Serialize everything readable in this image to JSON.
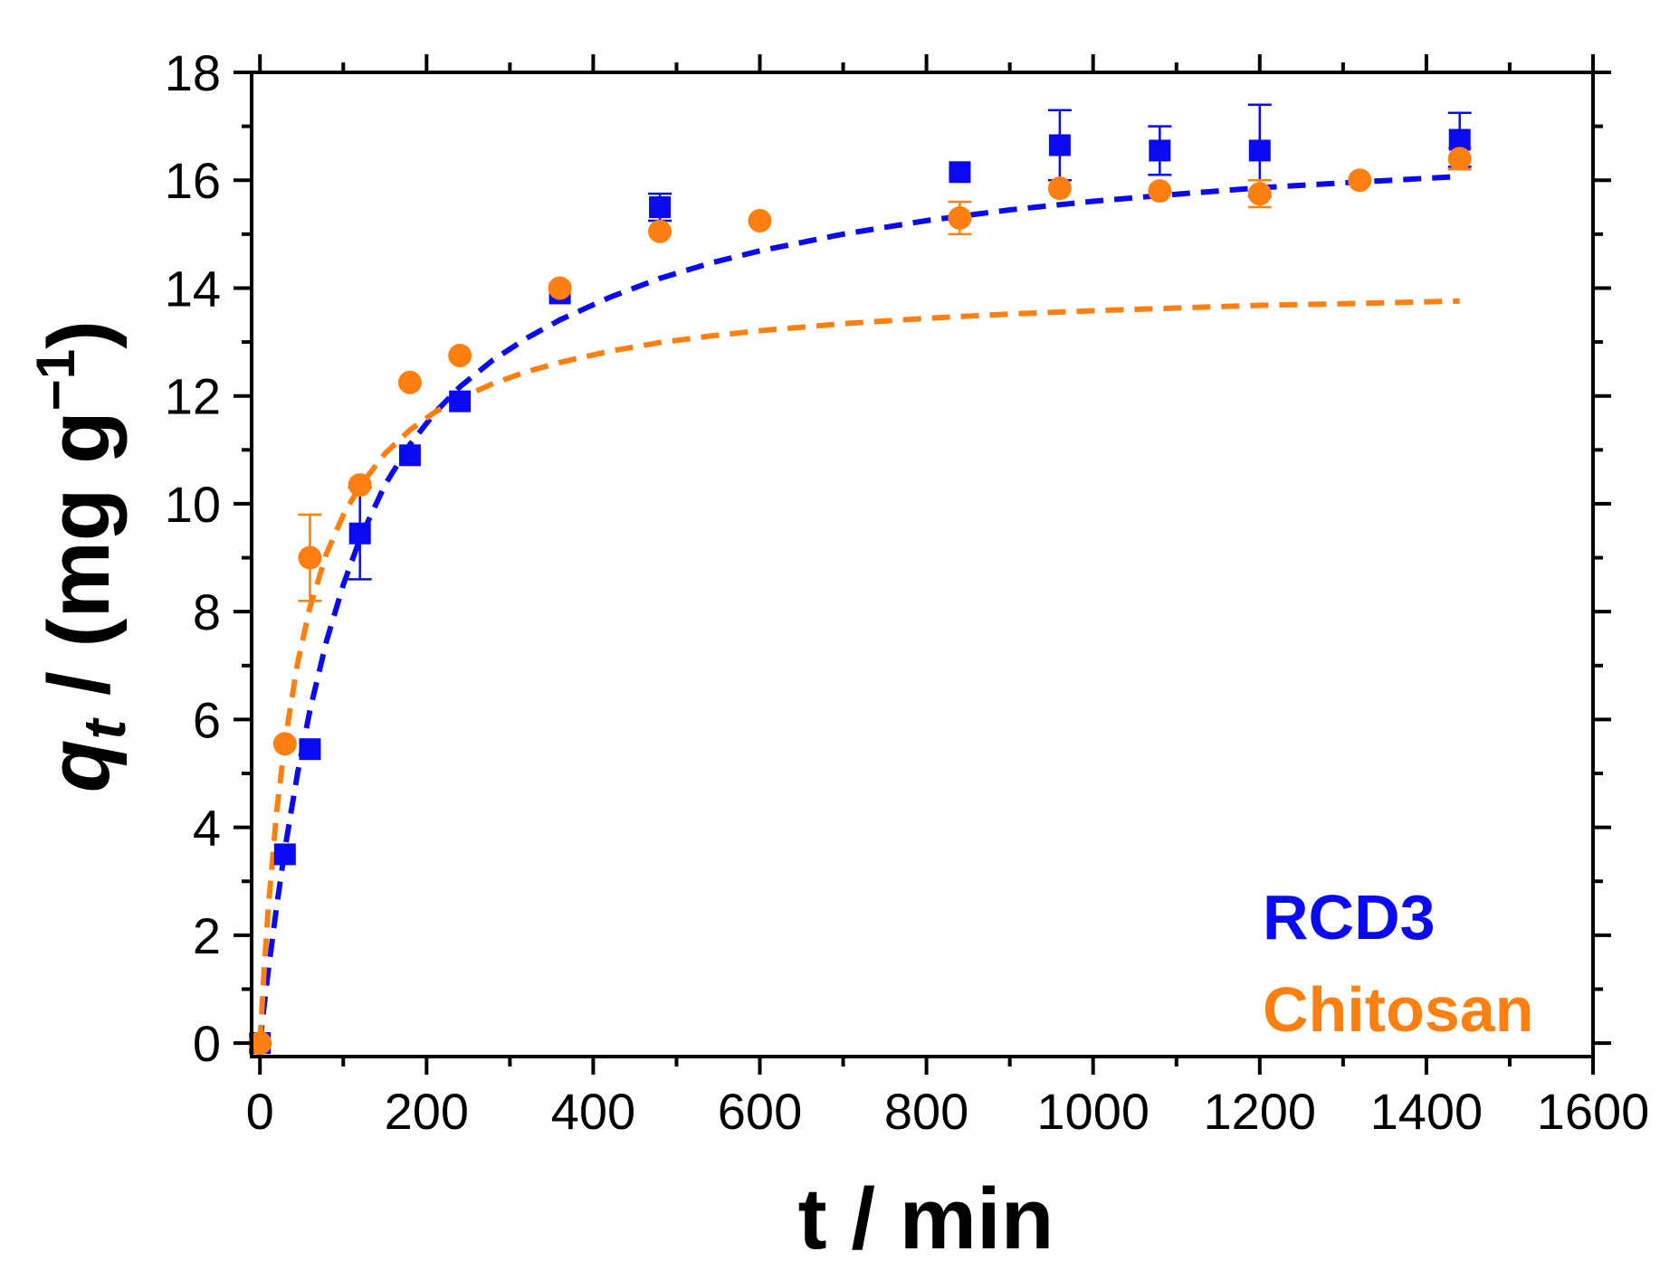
{
  "chart_data": {
    "type": "scatter",
    "xlabel": "t / min",
    "ylabel": {
      "symbol": "q",
      "subscript": "t",
      "units": " / (mg g",
      "exponent": "−1",
      "close": ")"
    },
    "xlim": [
      -10,
      1600
    ],
    "ylim": [
      -0.25,
      18
    ],
    "xticks": [
      0,
      200,
      400,
      600,
      800,
      1000,
      1200,
      1400,
      1600
    ],
    "xtick_labels": [
      "0",
      "200",
      "400",
      "600",
      "800",
      "1000",
      "1200",
      "1400",
      "1600"
    ],
    "yticks": [
      0,
      2,
      4,
      6,
      8,
      10,
      12,
      14,
      16,
      18
    ],
    "ytick_labels": [
      "0",
      "2",
      "4",
      "6",
      "8",
      "10",
      "12",
      "14",
      "16",
      "18"
    ],
    "x_minor_step": 100,
    "y_minor_step": 1,
    "grid": false,
    "legend_position": "bottom-right",
    "series": [
      {
        "name": "RCD3",
        "color": "#0a0af0",
        "marker": "square",
        "x": [
          0,
          30,
          60,
          120,
          180,
          240,
          360,
          480,
          840,
          960,
          1080,
          1200,
          1440
        ],
        "y": [
          0,
          3.5,
          5.45,
          9.45,
          10.9,
          11.9,
          13.9,
          15.5,
          16.15,
          16.65,
          16.55,
          16.55,
          16.75
        ],
        "err": [
          0,
          0,
          0,
          0.85,
          0,
          0,
          0,
          0.25,
          0,
          0.65,
          0.45,
          0.85,
          0.5
        ],
        "fit": {
          "x": [
            0,
            5,
            10,
            20,
            30,
            45,
            60,
            80,
            100,
            120,
            150,
            180,
            210,
            240,
            280,
            320,
            360,
            420,
            480,
            540,
            600,
            700,
            800,
            900,
            1000,
            1100,
            1200,
            1300,
            1440
          ],
          "y": [
            0,
            0.69,
            1.34,
            2.53,
            3.6,
            4.99,
            6.17,
            7.46,
            8.5,
            9.35,
            10.35,
            11.1,
            11.69,
            12.17,
            12.67,
            13.07,
            13.41,
            13.83,
            14.18,
            14.46,
            14.69,
            15.0,
            15.25,
            15.45,
            15.61,
            15.74,
            15.86,
            15.95,
            16.07
          ]
        }
      },
      {
        "name": "Chitosan",
        "color": "#ff8010",
        "marker": "circle",
        "x": [
          0,
          30,
          60,
          120,
          180,
          240,
          360,
          480,
          600,
          840,
          960,
          1080,
          1200,
          1320,
          1440
        ],
        "y": [
          0,
          5.55,
          9.0,
          10.35,
          12.25,
          12.75,
          14.0,
          15.05,
          15.25,
          15.3,
          15.85,
          15.8,
          15.75,
          16.0,
          16.4
        ],
        "err": [
          0,
          0,
          0.8,
          0,
          0,
          0,
          0,
          0,
          0,
          0.3,
          0,
          0,
          0.25,
          0,
          0.2
        ],
        "fit": {
          "x": [
            0,
            5,
            10,
            20,
            30,
            45,
            60,
            80,
            100,
            120,
            150,
            180,
            210,
            240,
            280,
            320,
            360,
            420,
            480,
            540,
            600,
            700,
            800,
            900,
            1000,
            1100,
            1200,
            1300,
            1440
          ],
          "y": [
            0,
            1.35,
            2.5,
            4.28,
            5.59,
            7.03,
            8.08,
            9.08,
            9.79,
            10.33,
            10.93,
            11.37,
            11.7,
            11.96,
            12.23,
            12.45,
            12.62,
            12.83,
            12.99,
            13.11,
            13.21,
            13.34,
            13.44,
            13.52,
            13.58,
            13.63,
            13.68,
            13.71,
            13.76
          ]
        }
      }
    ],
    "legend": [
      {
        "label": "RCD3",
        "color": "#0a0af0"
      },
      {
        "label": "Chitosan",
        "color": "#ff8010"
      }
    ]
  }
}
